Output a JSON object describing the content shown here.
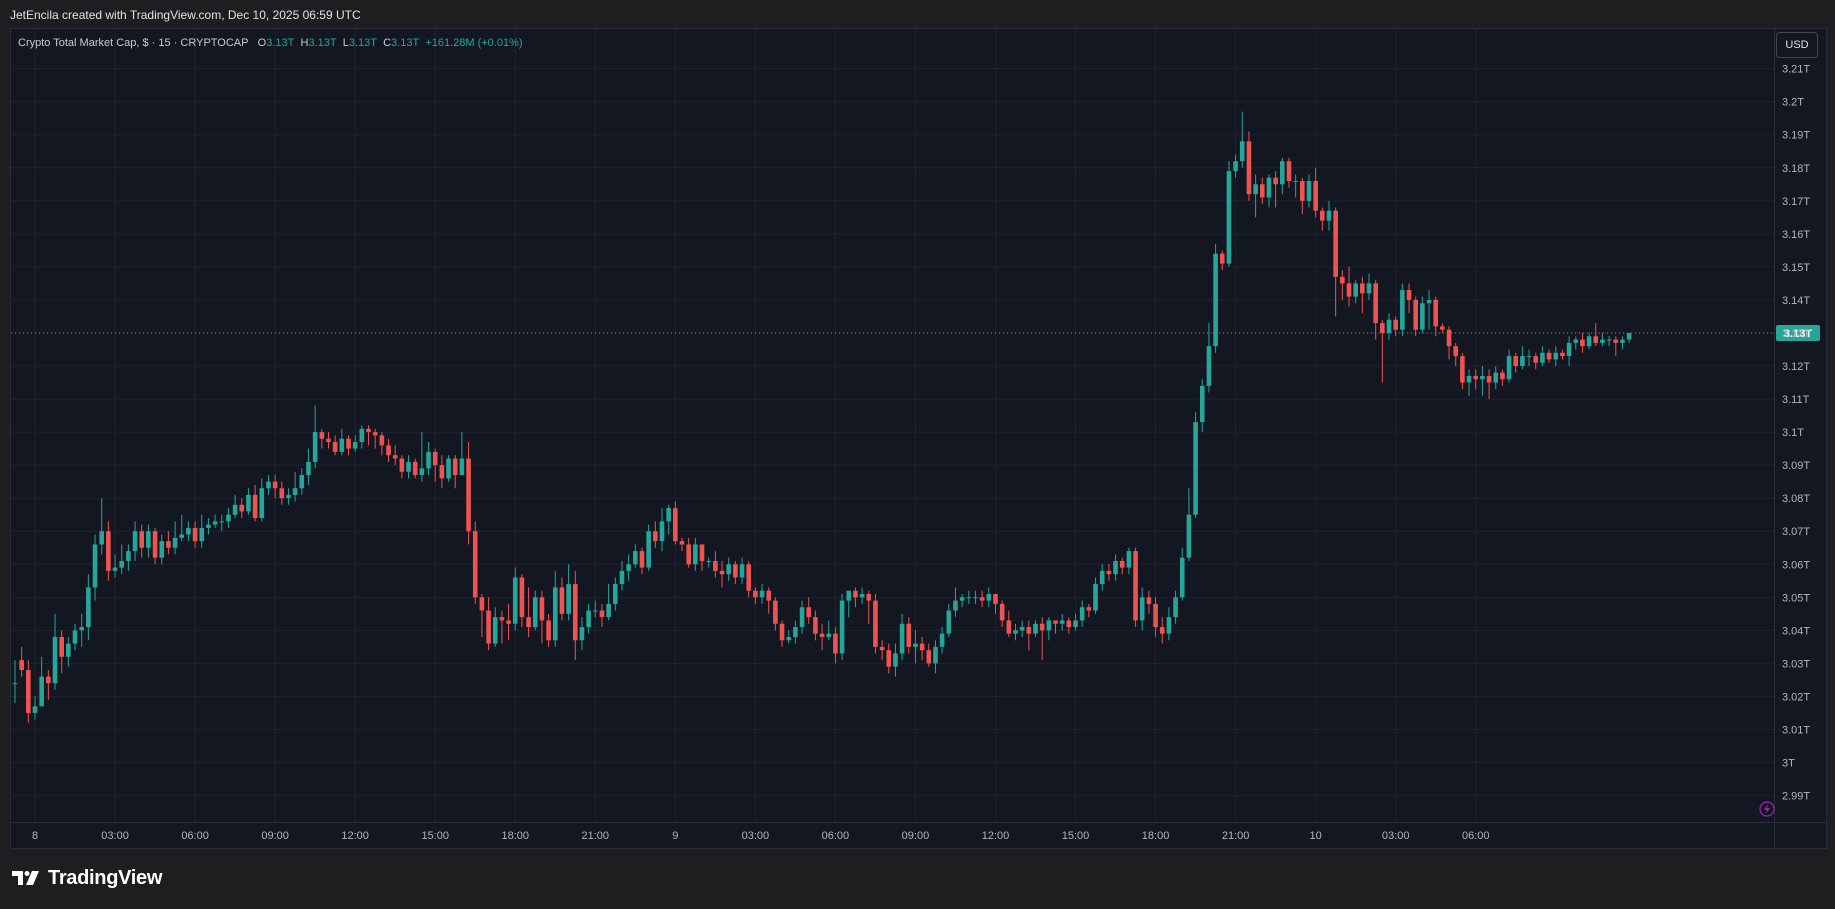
{
  "header": {
    "credit": "JetEncila created with TradingView.com, Dec 10, 2025 06:59 UTC"
  },
  "legend": {
    "symbol": "Crypto Total Market Cap, $ · 15 · CRYPTOCAP",
    "open_label": "O",
    "open_value": "3.13T",
    "high_label": "H",
    "high_value": "3.13T",
    "low_label": "L",
    "low_value": "3.13T",
    "close_label": "C",
    "close_value": "3.13T",
    "change": "+161.28M (+0.01%)"
  },
  "currency": "USD",
  "footer": {
    "brand": "TradingView"
  },
  "colors": {
    "up": "#26a69a",
    "down": "#ef5350",
    "background": "#131722",
    "grid": "#1f2330"
  },
  "chart_data": {
    "type": "candlestick",
    "title": "Crypto Total Market Cap",
    "interval": "15",
    "ylabel": "USD",
    "ylim": [
      2.982,
      3.222
    ],
    "y_unit": "T",
    "y_ticks": [
      "2.99T",
      "3T",
      "3.01T",
      "3.02T",
      "3.03T",
      "3.04T",
      "3.05T",
      "3.06T",
      "3.07T",
      "3.08T",
      "3.09T",
      "3.1T",
      "3.11T",
      "3.12T",
      "3.13T",
      "3.14T",
      "3.15T",
      "3.16T",
      "3.17T",
      "3.18T",
      "3.19T",
      "3.2T",
      "3.21T"
    ],
    "x_ticks": [
      "8",
      "03:00",
      "06:00",
      "09:00",
      "12:00",
      "15:00",
      "18:00",
      "21:00",
      "9",
      "03:00",
      "06:00",
      "09:00",
      "12:00",
      "15:00",
      "18:00",
      "21:00",
      "10",
      "03:00",
      "06:00"
    ],
    "last_price_label": "3.13T",
    "last_price": 3.13,
    "grid": true,
    "candles": [
      [
        3.024,
        3.024,
        3.031,
        3.018
      ],
      [
        3.031,
        3.028,
        3.035,
        3.026
      ],
      [
        3.028,
        3.015,
        3.031,
        3.012
      ],
      [
        3.015,
        3.017,
        3.02,
        3.013
      ],
      [
        3.017,
        3.026,
        3.032,
        3.02
      ],
      [
        3.026,
        3.024,
        3.028,
        3.019
      ],
      [
        3.024,
        3.038,
        3.045,
        3.022
      ],
      [
        3.038,
        3.032,
        3.04,
        3.027
      ],
      [
        3.032,
        3.036,
        3.038,
        3.029
      ],
      [
        3.036,
        3.04,
        3.042,
        3.034
      ],
      [
        3.04,
        3.041,
        3.045,
        3.035
      ],
      [
        3.041,
        3.053,
        3.057,
        3.037
      ],
      [
        3.053,
        3.066,
        3.069,
        3.049
      ],
      [
        3.066,
        3.07,
        3.08,
        3.063
      ],
      [
        3.07,
        3.058,
        3.073,
        3.055
      ],
      [
        3.058,
        3.059,
        3.063,
        3.056
      ],
      [
        3.059,
        3.061,
        3.066,
        3.057
      ],
      [
        3.061,
        3.064,
        3.066,
        3.058
      ],
      [
        3.064,
        3.07,
        3.073,
        3.061
      ],
      [
        3.07,
        3.065,
        3.072,
        3.062
      ],
      [
        3.065,
        3.07,
        3.072,
        3.062
      ],
      [
        3.07,
        3.062,
        3.071,
        3.06
      ],
      [
        3.062,
        3.067,
        3.069,
        3.06
      ],
      [
        3.067,
        3.065,
        3.07,
        3.063
      ],
      [
        3.065,
        3.068,
        3.073,
        3.063
      ],
      [
        3.068,
        3.069,
        3.075,
        3.067
      ],
      [
        3.069,
        3.071,
        3.073,
        3.067
      ],
      [
        3.071,
        3.067,
        3.073,
        3.065
      ],
      [
        3.067,
        3.071,
        3.075,
        3.065
      ],
      [
        3.071,
        3.072,
        3.074,
        3.069
      ],
      [
        3.072,
        3.073,
        3.075,
        3.071
      ],
      [
        3.073,
        3.073,
        3.075,
        3.07
      ],
      [
        3.073,
        3.075,
        3.077,
        3.071
      ],
      [
        3.075,
        3.078,
        3.081,
        3.074
      ],
      [
        3.078,
        3.076,
        3.08,
        3.074
      ],
      [
        3.076,
        3.081,
        3.083,
        3.075
      ],
      [
        3.081,
        3.074,
        3.084,
        3.073
      ],
      [
        3.074,
        3.083,
        3.086,
        3.073
      ],
      [
        3.083,
        3.085,
        3.087,
        3.081
      ],
      [
        3.085,
        3.083,
        3.087,
        3.08
      ],
      [
        3.083,
        3.08,
        3.085,
        3.078
      ],
      [
        3.08,
        3.081,
        3.083,
        3.078
      ],
      [
        3.081,
        3.083,
        3.088,
        3.079
      ],
      [
        3.083,
        3.087,
        3.089,
        3.081
      ],
      [
        3.087,
        3.091,
        3.095,
        3.084
      ],
      [
        3.091,
        3.1,
        3.108,
        3.089
      ],
      [
        3.1,
        3.098,
        3.101,
        3.095
      ],
      [
        3.098,
        3.097,
        3.1,
        3.095
      ],
      [
        3.097,
        3.094,
        3.099,
        3.093
      ],
      [
        3.094,
        3.098,
        3.101,
        3.093
      ],
      [
        3.098,
        3.095,
        3.099,
        3.093
      ],
      [
        3.095,
        3.097,
        3.099,
        3.094
      ],
      [
        3.097,
        3.101,
        3.102,
        3.095
      ],
      [
        3.101,
        3.1,
        3.102,
        3.096
      ],
      [
        3.1,
        3.099,
        3.101,
        3.095
      ],
      [
        3.099,
        3.096,
        3.1,
        3.093
      ],
      [
        3.096,
        3.093,
        3.098,
        3.091
      ],
      [
        3.093,
        3.092,
        3.096,
        3.09
      ],
      [
        3.092,
        3.088,
        3.093,
        3.086
      ],
      [
        3.088,
        3.091,
        3.093,
        3.086
      ],
      [
        3.091,
        3.087,
        3.092,
        3.086
      ],
      [
        3.087,
        3.089,
        3.1,
        3.085
      ],
      [
        3.089,
        3.094,
        3.097,
        3.087
      ],
      [
        3.094,
        3.09,
        3.095,
        3.085
      ],
      [
        3.09,
        3.086,
        3.093,
        3.083
      ],
      [
        3.086,
        3.092,
        3.093,
        3.085
      ],
      [
        3.092,
        3.087,
        3.093,
        3.083
      ],
      [
        3.087,
        3.092,
        3.1,
        3.087
      ],
      [
        3.092,
        3.07,
        3.097,
        3.066
      ],
      [
        3.07,
        3.05,
        3.073,
        3.048
      ],
      [
        3.05,
        3.046,
        3.051,
        3.038
      ],
      [
        3.046,
        3.036,
        3.05,
        3.034
      ],
      [
        3.036,
        3.044,
        3.047,
        3.035
      ],
      [
        3.044,
        3.043,
        3.046,
        3.036
      ],
      [
        3.043,
        3.042,
        3.048,
        3.037
      ],
      [
        3.042,
        3.056,
        3.059,
        3.04
      ],
      [
        3.056,
        3.044,
        3.057,
        3.041
      ],
      [
        3.044,
        3.041,
        3.053,
        3.038
      ],
      [
        3.041,
        3.05,
        3.052,
        3.04
      ],
      [
        3.05,
        3.043,
        3.052,
        3.036
      ],
      [
        3.043,
        3.037,
        3.045,
        3.035
      ],
      [
        3.037,
        3.053,
        3.058,
        3.035
      ],
      [
        3.053,
        3.045,
        3.056,
        3.043
      ],
      [
        3.045,
        3.054,
        3.06,
        3.043
      ],
      [
        3.054,
        3.037,
        3.058,
        3.031
      ],
      [
        3.037,
        3.041,
        3.044,
        3.034
      ],
      [
        3.041,
        3.046,
        3.048,
        3.039
      ],
      [
        3.046,
        3.046,
        3.049,
        3.044
      ],
      [
        3.046,
        3.044,
        3.048,
        3.041
      ],
      [
        3.044,
        3.048,
        3.054,
        3.043
      ],
      [
        3.048,
        3.054,
        3.056,
        3.046
      ],
      [
        3.054,
        3.058,
        3.061,
        3.052
      ],
      [
        3.058,
        3.06,
        3.063,
        3.055
      ],
      [
        3.06,
        3.064,
        3.066,
        3.059
      ],
      [
        3.064,
        3.059,
        3.065,
        3.057
      ],
      [
        3.059,
        3.07,
        3.072,
        3.058
      ],
      [
        3.07,
        3.067,
        3.073,
        3.065
      ],
      [
        3.067,
        3.073,
        3.077,
        3.064
      ],
      [
        3.073,
        3.077,
        3.078,
        3.069
      ],
      [
        3.077,
        3.067,
        3.079,
        3.066
      ],
      [
        3.067,
        3.066,
        3.068,
        3.064
      ],
      [
        3.066,
        3.06,
        3.068,
        3.059
      ],
      [
        3.06,
        3.066,
        3.068,
        3.058
      ],
      [
        3.066,
        3.061,
        3.066,
        3.058
      ],
      [
        3.061,
        3.061,
        3.062,
        3.059
      ],
      [
        3.061,
        3.058,
        3.064,
        3.056
      ],
      [
        3.058,
        3.057,
        3.061,
        3.053
      ],
      [
        3.057,
        3.06,
        3.062,
        3.055
      ],
      [
        3.06,
        3.056,
        3.061,
        3.054
      ],
      [
        3.056,
        3.06,
        3.062,
        3.054
      ],
      [
        3.06,
        3.052,
        3.061,
        3.05
      ],
      [
        3.052,
        3.05,
        3.053,
        3.048
      ],
      [
        3.05,
        3.052,
        3.054,
        3.048
      ],
      [
        3.052,
        3.049,
        3.053,
        3.045
      ],
      [
        3.049,
        3.042,
        3.05,
        3.04
      ],
      [
        3.042,
        3.037,
        3.043,
        3.035
      ],
      [
        3.037,
        3.038,
        3.04,
        3.036
      ],
      [
        3.038,
        3.041,
        3.043,
        3.036
      ],
      [
        3.041,
        3.047,
        3.049,
        3.039
      ],
      [
        3.047,
        3.044,
        3.05,
        3.042
      ],
      [
        3.044,
        3.039,
        3.046,
        3.037
      ],
      [
        3.039,
        3.038,
        3.042,
        3.034
      ],
      [
        3.038,
        3.039,
        3.043,
        3.037
      ],
      [
        3.039,
        3.033,
        3.041,
        3.03
      ],
      [
        3.033,
        3.049,
        3.051,
        3.031
      ],
      [
        3.049,
        3.052,
        3.052,
        3.044
      ],
      [
        3.052,
        3.05,
        3.053,
        3.047
      ],
      [
        3.05,
        3.051,
        3.053,
        3.048
      ],
      [
        3.051,
        3.049,
        3.052,
        3.042
      ],
      [
        3.049,
        3.035,
        3.051,
        3.033
      ],
      [
        3.035,
        3.034,
        3.037,
        3.031
      ],
      [
        3.034,
        3.029,
        3.036,
        3.027
      ],
      [
        3.029,
        3.033,
        3.036,
        3.026
      ],
      [
        3.033,
        3.042,
        3.045,
        3.031
      ],
      [
        3.042,
        3.035,
        3.044,
        3.033
      ],
      [
        3.035,
        3.036,
        3.04,
        3.03
      ],
      [
        3.036,
        3.034,
        3.038,
        3.031
      ],
      [
        3.034,
        3.03,
        3.036,
        3.029
      ],
      [
        3.03,
        3.035,
        3.037,
        3.027
      ],
      [
        3.035,
        3.039,
        3.041,
        3.033
      ],
      [
        3.039,
        3.046,
        3.048,
        3.038
      ],
      [
        3.046,
        3.049,
        3.053,
        3.044
      ],
      [
        3.049,
        3.05,
        3.051,
        3.047
      ],
      [
        3.05,
        3.05,
        3.052,
        3.048
      ],
      [
        3.05,
        3.05,
        3.052,
        3.048
      ],
      [
        3.05,
        3.049,
        3.052,
        3.047
      ],
      [
        3.049,
        3.051,
        3.053,
        3.047
      ],
      [
        3.051,
        3.048,
        3.051,
        3.045
      ],
      [
        3.048,
        3.043,
        3.049,
        3.041
      ],
      [
        3.043,
        3.039,
        3.046,
        3.038
      ],
      [
        3.039,
        3.04,
        3.042,
        3.037
      ],
      [
        3.04,
        3.041,
        3.043,
        3.038
      ],
      [
        3.041,
        3.039,
        3.043,
        3.034
      ],
      [
        3.039,
        3.042,
        3.043,
        3.038
      ],
      [
        3.042,
        3.04,
        3.044,
        3.031
      ],
      [
        3.04,
        3.043,
        3.044,
        3.037
      ],
      [
        3.043,
        3.042,
        3.043,
        3.039
      ],
      [
        3.042,
        3.043,
        3.045,
        3.04
      ],
      [
        3.043,
        3.041,
        3.044,
        3.039
      ],
      [
        3.041,
        3.043,
        3.045,
        3.04
      ],
      [
        3.043,
        3.047,
        3.049,
        3.041
      ],
      [
        3.047,
        3.046,
        3.048,
        3.044
      ],
      [
        3.046,
        3.054,
        3.056,
        3.045
      ],
      [
        3.054,
        3.058,
        3.06,
        3.052
      ],
      [
        3.058,
        3.057,
        3.06,
        3.055
      ],
      [
        3.057,
        3.061,
        3.063,
        3.055
      ],
      [
        3.061,
        3.059,
        3.062,
        3.057
      ],
      [
        3.059,
        3.064,
        3.065,
        3.057
      ],
      [
        3.064,
        3.043,
        3.065,
        3.041
      ],
      [
        3.043,
        3.05,
        3.053,
        3.04
      ],
      [
        3.05,
        3.048,
        3.052,
        3.045
      ],
      [
        3.048,
        3.041,
        3.05,
        3.038
      ],
      [
        3.041,
        3.039,
        3.044,
        3.036
      ],
      [
        3.039,
        3.044,
        3.047,
        3.037
      ],
      [
        3.044,
        3.05,
        3.052,
        3.042
      ],
      [
        3.05,
        3.062,
        3.065,
        3.049
      ],
      [
        3.062,
        3.075,
        3.083,
        3.061
      ],
      [
        3.075,
        3.103,
        3.106,
        3.074
      ],
      [
        3.103,
        3.114,
        3.116,
        3.1
      ],
      [
        3.114,
        3.126,
        3.133,
        3.112
      ],
      [
        3.126,
        3.154,
        3.157,
        3.124
      ],
      [
        3.154,
        3.151,
        3.155,
        3.149
      ],
      [
        3.151,
        3.179,
        3.182,
        3.15
      ],
      [
        3.179,
        3.182,
        3.184,
        3.177
      ],
      [
        3.182,
        3.188,
        3.197,
        3.18
      ],
      [
        3.188,
        3.172,
        3.191,
        3.17
      ],
      [
        3.172,
        3.175,
        3.178,
        3.165
      ],
      [
        3.175,
        3.171,
        3.177,
        3.169
      ],
      [
        3.171,
        3.177,
        3.178,
        3.168
      ],
      [
        3.177,
        3.175,
        3.179,
        3.168
      ],
      [
        3.175,
        3.182,
        3.183,
        3.172
      ],
      [
        3.182,
        3.176,
        3.183,
        3.174
      ],
      [
        3.176,
        3.176,
        3.178,
        3.171
      ],
      [
        3.176,
        3.17,
        3.177,
        3.166
      ],
      [
        3.17,
        3.176,
        3.178,
        3.168
      ],
      [
        3.176,
        3.167,
        3.18,
        3.165
      ],
      [
        3.167,
        3.164,
        3.168,
        3.161
      ],
      [
        3.164,
        3.167,
        3.17,
        3.161
      ],
      [
        3.167,
        3.147,
        3.168,
        3.135
      ],
      [
        3.147,
        3.145,
        3.149,
        3.14
      ],
      [
        3.145,
        3.141,
        3.15,
        3.138
      ],
      [
        3.141,
        3.145,
        3.146,
        3.139
      ],
      [
        3.145,
        3.142,
        3.147,
        3.136
      ],
      [
        3.142,
        3.145,
        3.148,
        3.14
      ],
      [
        3.145,
        3.133,
        3.146,
        3.128
      ],
      [
        3.133,
        3.13,
        3.134,
        3.115
      ],
      [
        3.13,
        3.134,
        3.136,
        3.128
      ],
      [
        3.134,
        3.131,
        3.135,
        3.129
      ],
      [
        3.131,
        3.143,
        3.145,
        3.129
      ],
      [
        3.143,
        3.14,
        3.145,
        3.136
      ],
      [
        3.14,
        3.131,
        3.141,
        3.129
      ],
      [
        3.131,
        3.139,
        3.141,
        3.13
      ],
      [
        3.139,
        3.14,
        3.143,
        3.131
      ],
      [
        3.14,
        3.132,
        3.141,
        3.129
      ],
      [
        3.132,
        3.131,
        3.133,
        3.13
      ],
      [
        3.131,
        3.126,
        3.132,
        3.122
      ],
      [
        3.126,
        3.123,
        3.127,
        3.12
      ],
      [
        3.123,
        3.115,
        3.124,
        3.113
      ],
      [
        3.115,
        3.117,
        3.119,
        3.111
      ],
      [
        3.117,
        3.116,
        3.119,
        3.113
      ],
      [
        3.116,
        3.117,
        3.12,
        3.111
      ],
      [
        3.117,
        3.115,
        3.119,
        3.11
      ],
      [
        3.115,
        3.118,
        3.12,
        3.113
      ],
      [
        3.118,
        3.116,
        3.119,
        3.114
      ],
      [
        3.116,
        3.123,
        3.125,
        3.115
      ],
      [
        3.123,
        3.12,
        3.124,
        3.118
      ],
      [
        3.12,
        3.123,
        3.126,
        3.119
      ],
      [
        3.123,
        3.123,
        3.125,
        3.12
      ],
      [
        3.123,
        3.121,
        3.124,
        3.119
      ],
      [
        3.121,
        3.124,
        3.126,
        3.12
      ],
      [
        3.124,
        3.122,
        3.125,
        3.121
      ],
      [
        3.122,
        3.124,
        3.126,
        3.12
      ],
      [
        3.124,
        3.123,
        3.125,
        3.122
      ],
      [
        3.123,
        3.127,
        3.129,
        3.12
      ],
      [
        3.127,
        3.128,
        3.129,
        3.125
      ],
      [
        3.128,
        3.126,
        3.13,
        3.124
      ],
      [
        3.126,
        3.129,
        3.13,
        3.125
      ],
      [
        3.129,
        3.127,
        3.133,
        3.126
      ],
      [
        3.127,
        3.128,
        3.13,
        3.126
      ],
      [
        3.128,
        3.128,
        3.129,
        3.126
      ],
      [
        3.128,
        3.127,
        3.129,
        3.123
      ],
      [
        3.127,
        3.128,
        3.129,
        3.125
      ],
      [
        3.128,
        3.13,
        3.13,
        3.127
      ]
    ]
  }
}
